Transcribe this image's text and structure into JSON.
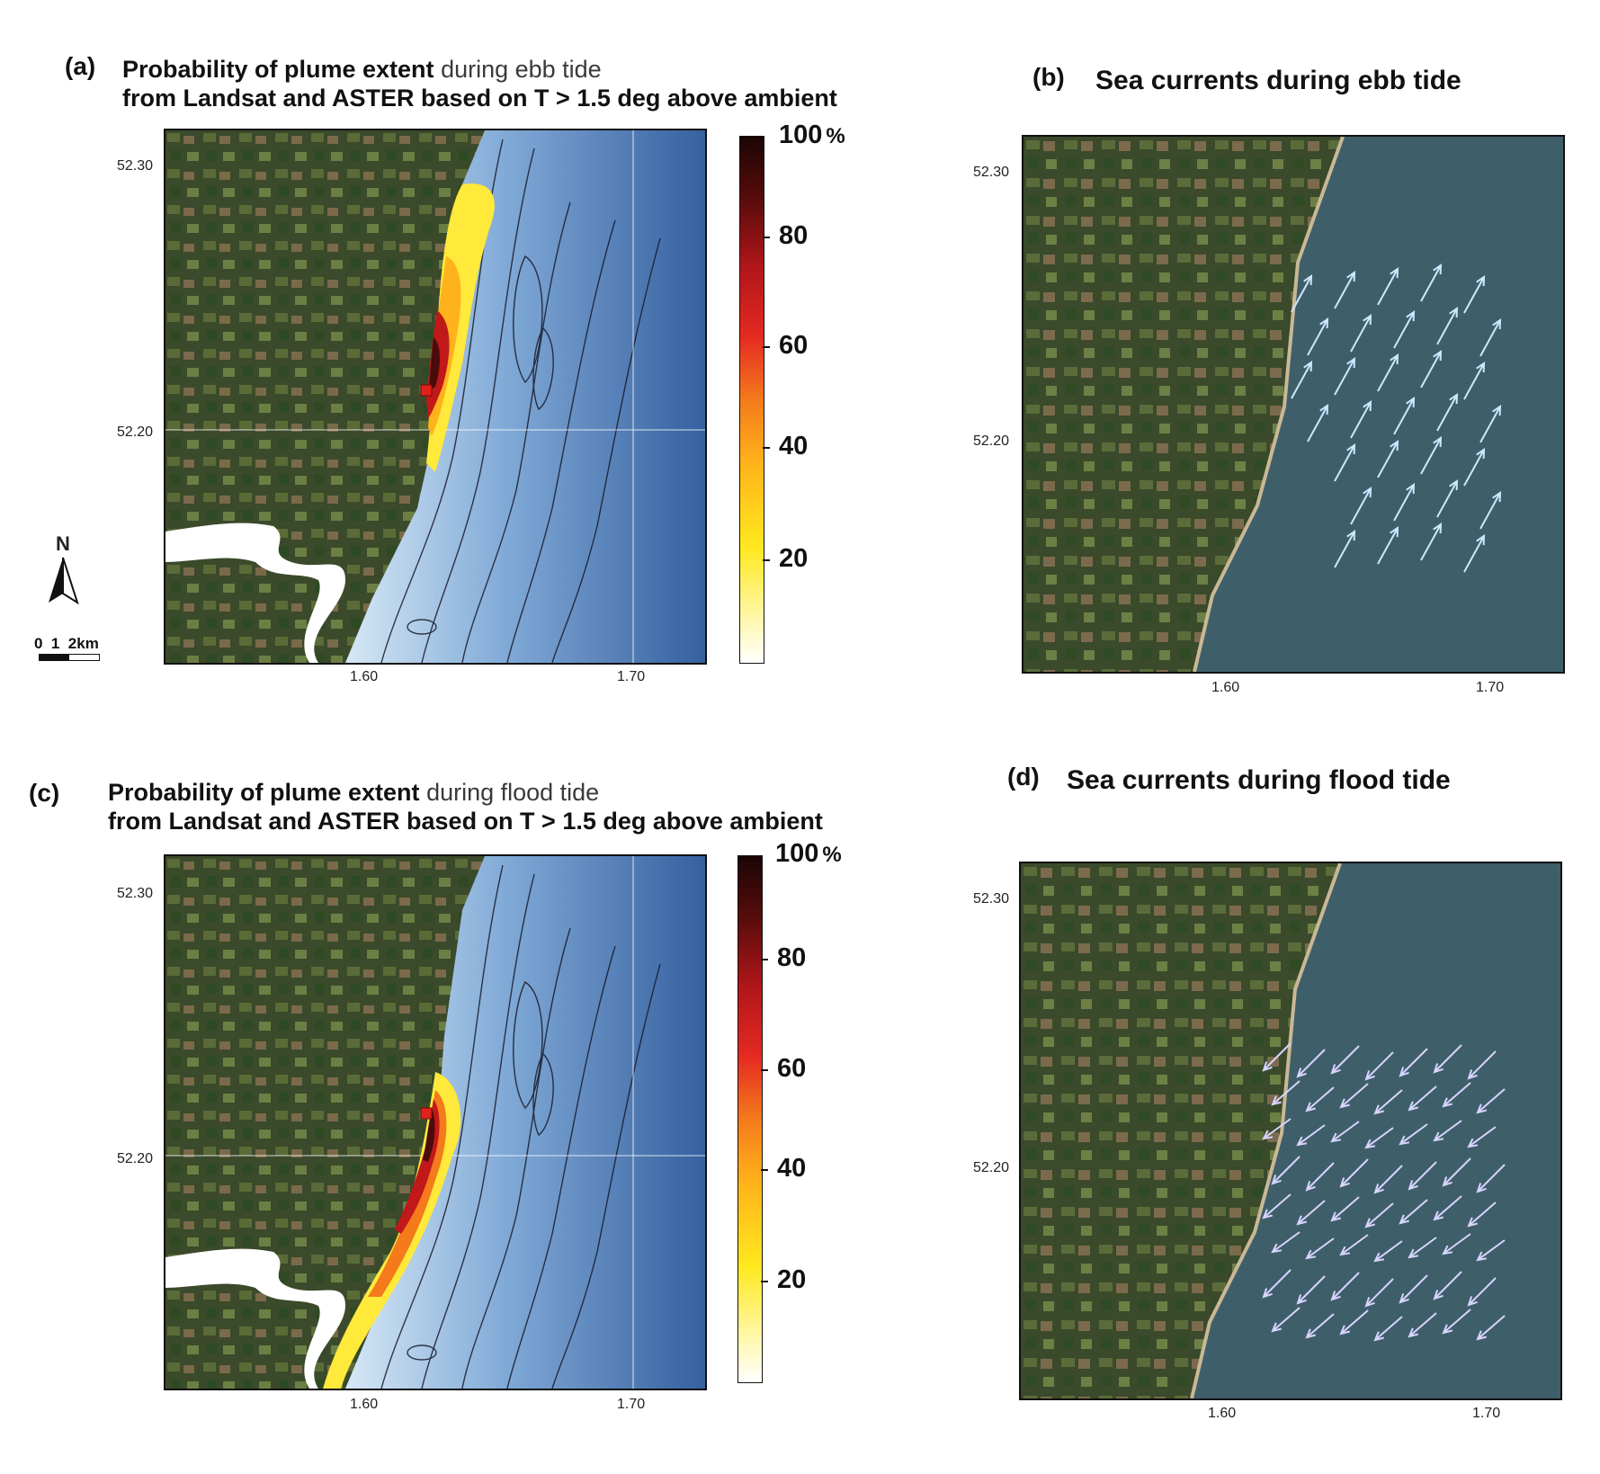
{
  "panels": {
    "a": {
      "label": "(a)",
      "title_line1_bold": "Probability of plume extent",
      "title_line1_rest": "during ebb tide",
      "title_line2": "from Landsat and ASTER based on T  > 1.5 deg above ambient",
      "ylabels": [
        "52.30",
        "52.20"
      ],
      "xlabels": [
        "1.60",
        "1.70"
      ]
    },
    "b": {
      "label": "(b)",
      "title": "Sea currents during ebb tide",
      "ylabels": [
        "52.30",
        "52.20"
      ],
      "xlabels": [
        "1.60",
        "1.70"
      ]
    },
    "c": {
      "label": "(c)",
      "title_line1_bold": "Probability of plume extent",
      "title_line1_rest": "during flood tide",
      "title_line2": "from Landsat and ASTER based on T  > 1.5 deg above ambient",
      "ylabels": [
        "52.30",
        "52.20"
      ],
      "xlabels": [
        "1.60",
        "1.70"
      ]
    },
    "d": {
      "label": "(d)",
      "title": "Sea currents during flood tide",
      "ylabels": [
        "52.30",
        "52.20"
      ],
      "xlabels": [
        "1.60",
        "1.70"
      ]
    }
  },
  "colorbar": {
    "top_label": "100",
    "unit": "%",
    "ticks": [
      "80",
      "60",
      "40",
      "20"
    ]
  },
  "north_arrow": {
    "letter": "N"
  },
  "scale_bar": {
    "text": "0  1  2km"
  }
}
